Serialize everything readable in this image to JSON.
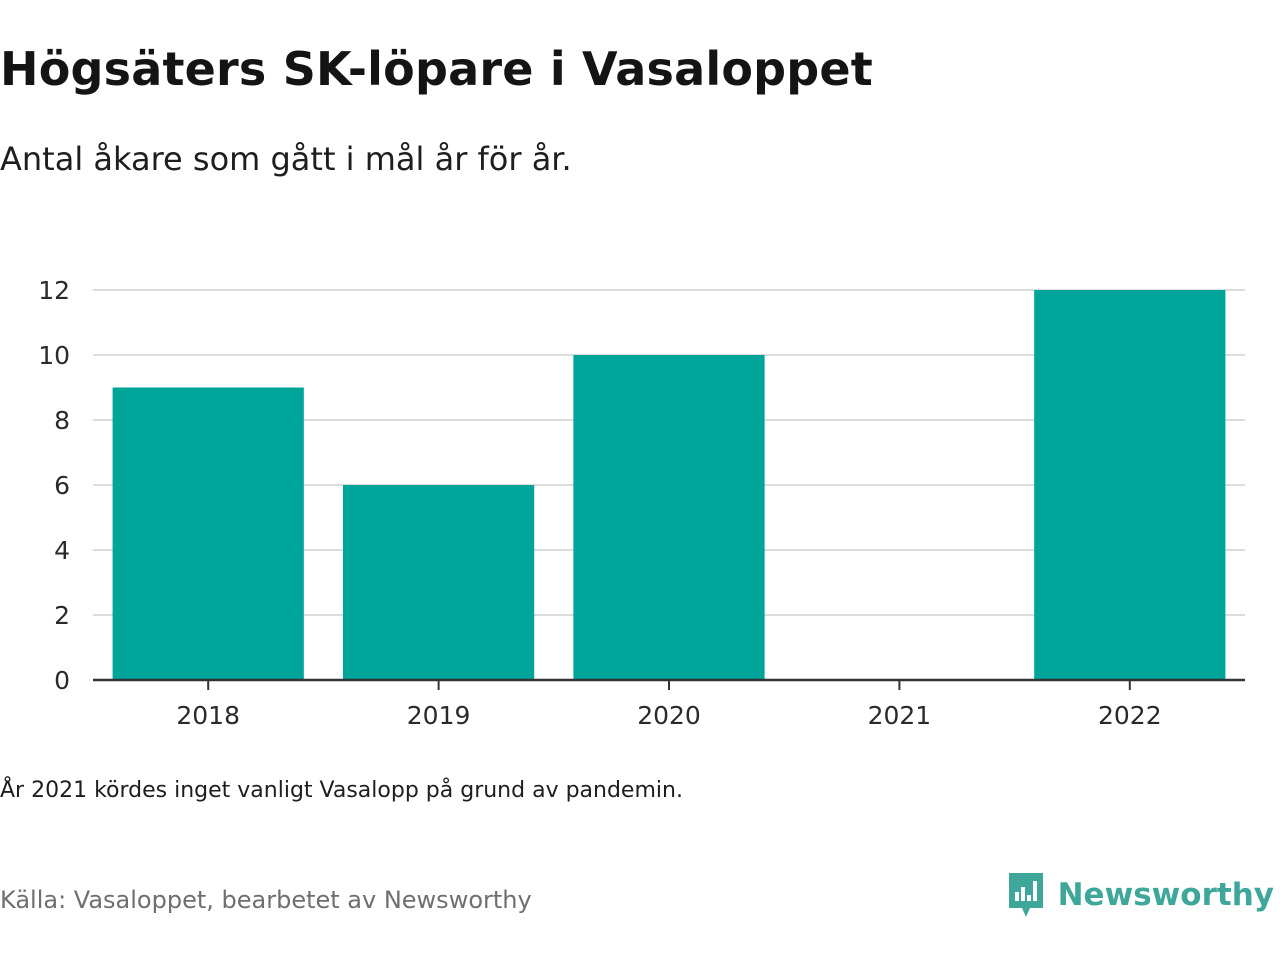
{
  "header": {
    "title": "Högsäters SK-löpare i Vasaloppet",
    "subtitle": "Antal åkare som gått i mål år för år."
  },
  "footer": {
    "note": "År 2021 kördes inget vanligt Vasalopp på grund av pandemin.",
    "source": "Källa: Vasaloppet, bearbetet av Newsworthy",
    "brand": "Newsworthy",
    "brand_icon": "newsworthy-logo-icon"
  },
  "colors": {
    "bar": "#00a59a",
    "grid": "#dcdcdc",
    "axis": "#333333",
    "brand": "#3fa79a"
  },
  "chart_data": {
    "type": "bar",
    "categories": [
      "2018",
      "2019",
      "2020",
      "2021",
      "2022"
    ],
    "values": [
      9,
      6,
      10,
      null,
      12
    ],
    "title": "Högsäters SK-löpare i Vasaloppet",
    "subtitle": "Antal åkare som gått i mål år för år.",
    "xlabel": "",
    "ylabel": "",
    "ylim": [
      0,
      12
    ],
    "yticks": [
      "0",
      "2",
      "4",
      "6",
      "8",
      "10",
      "12"
    ],
    "grid": true,
    "legend": "none"
  }
}
